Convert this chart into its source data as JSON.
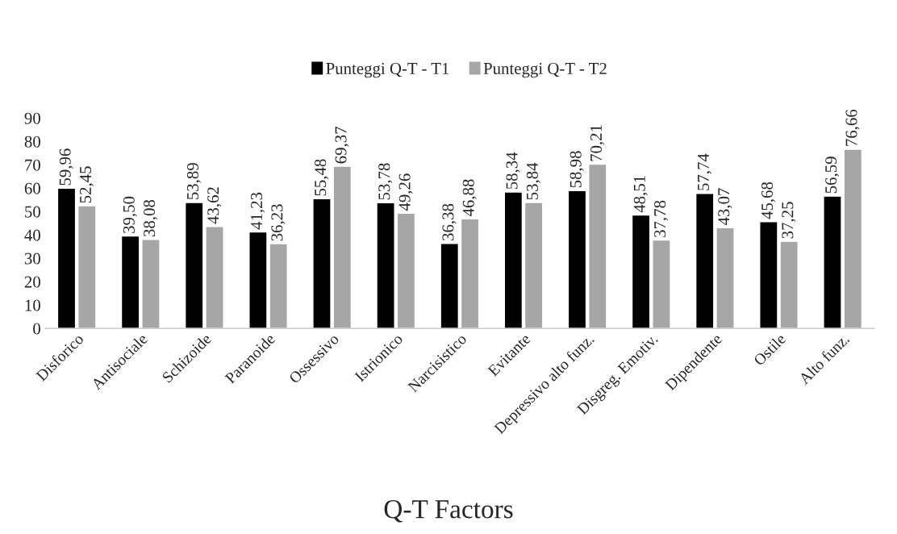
{
  "chart_data": {
    "type": "bar",
    "xlabel": "Q-T Factors",
    "categories": [
      "Disforico",
      "Antisociale",
      "Schizoide",
      "Paranoide",
      "Ossessivo",
      "Istrionico",
      "Narcisistico",
      "Evitante",
      "Depressivo alto funz.",
      "Disgreg. Emotiv.",
      "Dipendente",
      "Ostile",
      "Alto funz."
    ],
    "series": [
      {
        "name": "Punteggi Q-T - T1",
        "color": "#000000",
        "values": [
          59.96,
          39.5,
          53.89,
          41.23,
          55.48,
          53.78,
          36.38,
          58.34,
          58.98,
          48.51,
          57.74,
          45.68,
          56.59
        ],
        "value_labels": [
          "59,96",
          "39,50",
          "53,89",
          "41,23",
          "55,48",
          "53,78",
          "36,38",
          "58,34",
          "58,98",
          "48,51",
          "57,74",
          "45,68",
          "56,59"
        ]
      },
      {
        "name": "Punteggi Q-T - T2",
        "color": "#a6a6a6",
        "values": [
          52.45,
          38.08,
          43.62,
          36.23,
          69.37,
          49.26,
          46.88,
          53.84,
          70.21,
          37.78,
          43.07,
          37.25,
          76.66
        ],
        "value_labels": [
          "52,45",
          "38,08",
          "43,62",
          "36,23",
          "69,37",
          "49,26",
          "46,88",
          "53,84",
          "70,21",
          "37,78",
          "43,07",
          "37,25",
          "76,66"
        ]
      }
    ],
    "ylim": [
      0,
      90
    ],
    "yticks": [
      0,
      10,
      20,
      30,
      40,
      50,
      60,
      70,
      80,
      90
    ],
    "grid": false,
    "legend": "top"
  }
}
